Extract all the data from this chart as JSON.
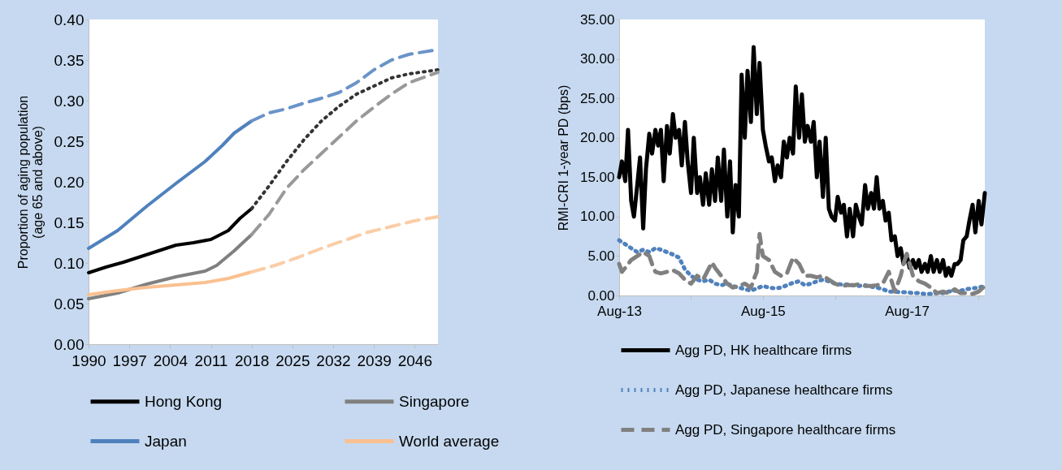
{
  "chart_data": [
    {
      "type": "line",
      "ylabel": "Proportion of aging population\n(age 65 and above)",
      "xlim": [
        1990,
        2050
      ],
      "xticks": [
        1990,
        1997,
        2004,
        2011,
        2018,
        2025,
        2032,
        2039,
        2046
      ],
      "ylim": [
        0,
        0.4
      ],
      "yticks": [
        {
          "value": 0,
          "label": "0.00"
        },
        {
          "value": 0.05,
          "label": "0.05"
        },
        {
          "value": 0.1,
          "label": "0.10"
        },
        {
          "value": 0.15,
          "label": "0.15"
        },
        {
          "value": 0.2,
          "label": "0.20"
        },
        {
          "value": 0.25,
          "label": "0.25"
        },
        {
          "value": 0.3,
          "label": "0.30"
        },
        {
          "value": 0.35,
          "label": "0.35"
        },
        {
          "value": 0.4,
          "label": "0.40"
        }
      ],
      "grid": false,
      "legend": "bottom",
      "series": [
        {
          "name": "Hong Kong",
          "color": "#000000",
          "line_style": "solid",
          "x": [
            1990,
            1993,
            1996,
            1999,
            2002,
            2005,
            2008,
            2011,
            2014,
            2016,
            2018
          ],
          "values": [
            0.088,
            0.095,
            0.101,
            0.108,
            0.115,
            0.122,
            0.125,
            0.129,
            0.14,
            0.155,
            0.167
          ]
        },
        {
          "name": "Singapore",
          "color": "#808080",
          "line_style": "solid",
          "x": [
            1990,
            1995,
            2000,
            2005,
            2010,
            2012,
            2015,
            2018
          ],
          "values": [
            0.056,
            0.063,
            0.074,
            0.083,
            0.09,
            0.097,
            0.115,
            0.135
          ]
        },
        {
          "name": "Japan",
          "color": "#4f81bd",
          "line_style": "solid",
          "x": [
            1990,
            1995,
            2000,
            2005,
            2010,
            2013,
            2015,
            2018
          ],
          "values": [
            0.118,
            0.14,
            0.17,
            0.198,
            0.225,
            0.245,
            0.26,
            0.275
          ]
        },
        {
          "name": "World average",
          "color": "#fac090",
          "line_style": "solid",
          "x": [
            1990,
            1995,
            2000,
            2005,
            2010,
            2014,
            2018
          ],
          "values": [
            0.061,
            0.066,
            0.07,
            0.073,
            0.076,
            0.081,
            0.089
          ]
        },
        {
          "color": "#333333",
          "line_style": "dotted",
          "x": [
            2018,
            2021,
            2024,
            2027,
            2030,
            2033,
            2036,
            2039,
            2042,
            2045,
            2050
          ],
          "values": [
            0.167,
            0.195,
            0.225,
            0.252,
            0.275,
            0.293,
            0.308,
            0.318,
            0.328,
            0.333,
            0.338
          ]
        },
        {
          "color": "#999999",
          "line_style": "dashed",
          "x": [
            2018,
            2021,
            2024,
            2027,
            2030,
            2033,
            2036,
            2039,
            2042,
            2045,
            2050
          ],
          "values": [
            0.135,
            0.16,
            0.192,
            0.215,
            0.235,
            0.255,
            0.275,
            0.292,
            0.308,
            0.322,
            0.335
          ]
        },
        {
          "color": "#6a94c8",
          "line_style": "dashed",
          "x": [
            2018,
            2021,
            2024,
            2027,
            2030,
            2033,
            2036,
            2039,
            2042,
            2045,
            2050
          ],
          "values": [
            0.275,
            0.285,
            0.29,
            0.297,
            0.303,
            0.31,
            0.322,
            0.338,
            0.35,
            0.357,
            0.363
          ]
        },
        {
          "color": "#fbcda6",
          "line_style": "dashed",
          "x": [
            2018,
            2022,
            2026,
            2030,
            2034,
            2038,
            2042,
            2046,
            2050
          ],
          "values": [
            0.089,
            0.097,
            0.107,
            0.118,
            0.128,
            0.138,
            0.145,
            0.152,
            0.157
          ]
        }
      ]
    },
    {
      "type": "line",
      "ylabel": "RMI-CRI  1-year PD (bps)",
      "xlim": [
        "2013-08-01",
        "2018-09-01"
      ],
      "xticks": [
        {
          "value": "2013-08-01",
          "label": "Aug-13"
        },
        {
          "value": "2014-08-01",
          "label": null
        },
        {
          "value": "2015-08-01",
          "label": "Aug-15"
        },
        {
          "value": "2016-08-01",
          "label": null
        },
        {
          "value": "2017-08-01",
          "label": "Aug-17"
        },
        {
          "value": "2018-08-01",
          "label": null
        }
      ],
      "ylim": [
        0,
        35
      ],
      "yticks": [
        {
          "value": 0,
          "label": "0.00"
        },
        {
          "value": 5,
          "label": "5.00"
        },
        {
          "value": 10,
          "label": "10.00"
        },
        {
          "value": 15,
          "label": "15.00"
        },
        {
          "value": 20,
          "label": "20.00"
        },
        {
          "value": 25,
          "label": "25.00"
        },
        {
          "value": 30,
          "label": "30.00"
        },
        {
          "value": 35,
          "label": "35.00"
        }
      ],
      "grid": false,
      "legend": "bottom",
      "series": [
        {
          "name": "Agg PD, HK healthcare firms",
          "color": "#000000",
          "line_style": "solid",
          "x": [
            "2013-08-01",
            "2013-08-15",
            "2013-09-01",
            "2013-09-15",
            "2013-10-01",
            "2013-10-15",
            "2013-11-01",
            "2013-11-15",
            "2013-12-01",
            "2013-12-15",
            "2014-01-01",
            "2014-01-15",
            "2014-02-01",
            "2014-02-15",
            "2014-03-01",
            "2014-03-15",
            "2014-04-01",
            "2014-04-15",
            "2014-05-01",
            "2014-05-15",
            "2014-06-01",
            "2014-06-15",
            "2014-07-01",
            "2014-07-15",
            "2014-08-01",
            "2014-08-15",
            "2014-09-01",
            "2014-09-15",
            "2014-10-01",
            "2014-10-15",
            "2014-11-01",
            "2014-11-15",
            "2014-12-01",
            "2014-12-15",
            "2015-01-01",
            "2015-01-15",
            "2015-02-01",
            "2015-02-15",
            "2015-03-01",
            "2015-03-15",
            "2015-04-01",
            "2015-04-15",
            "2015-05-01",
            "2015-05-15",
            "2015-06-01",
            "2015-06-15",
            "2015-07-01",
            "2015-07-15",
            "2015-08-01",
            "2015-08-15",
            "2015-09-01",
            "2015-09-15",
            "2015-10-01",
            "2015-10-15",
            "2015-11-01",
            "2015-11-15",
            "2015-12-01",
            "2015-12-15",
            "2016-01-01",
            "2016-01-15",
            "2016-02-01",
            "2016-02-15",
            "2016-03-01",
            "2016-03-15",
            "2016-04-01",
            "2016-04-15",
            "2016-05-01",
            "2016-05-15",
            "2016-06-01",
            "2016-06-15",
            "2016-07-01",
            "2016-07-15",
            "2016-08-01",
            "2016-08-15",
            "2016-09-01",
            "2016-09-15",
            "2016-10-01",
            "2016-10-15",
            "2016-11-01",
            "2016-11-15",
            "2016-12-01",
            "2016-12-15",
            "2017-01-01",
            "2017-01-15",
            "2017-02-01",
            "2017-02-15",
            "2017-03-01",
            "2017-03-15",
            "2017-04-01",
            "2017-04-15",
            "2017-05-01",
            "2017-05-15",
            "2017-06-01",
            "2017-06-15",
            "2017-07-01",
            "2017-07-15",
            "2017-08-01",
            "2017-08-15",
            "2017-09-01",
            "2017-09-15",
            "2017-10-01",
            "2017-10-15",
            "2017-11-01",
            "2017-11-15",
            "2017-12-01",
            "2017-12-15",
            "2018-01-01",
            "2018-01-15",
            "2018-02-01",
            "2018-02-15",
            "2018-03-01",
            "2018-03-15",
            "2018-04-01",
            "2018-04-15",
            "2018-05-01",
            "2018-05-15",
            "2018-06-01",
            "2018-06-15",
            "2018-07-01",
            "2018-07-15",
            "2018-08-01",
            "2018-08-15",
            "2018-09-01"
          ],
          "values": [
            15,
            17,
            14.5,
            21,
            12,
            10,
            14,
            17.5,
            8.5,
            16,
            20.5,
            18,
            21,
            19,
            21,
            14.5,
            21.5,
            18,
            23,
            20,
            21,
            16.5,
            22,
            17,
            13,
            20,
            13,
            15,
            11.5,
            15.5,
            11.5,
            16,
            12,
            17.5,
            12,
            18.5,
            10,
            17,
            8,
            14,
            10,
            28,
            20,
            28.5,
            22,
            31.5,
            23,
            29.5,
            21,
            19,
            17,
            17.5,
            14.5,
            16.5,
            15,
            19.5,
            17.5,
            20,
            18,
            26.5,
            20,
            25.5,
            19.5,
            21.5,
            19.5,
            22,
            15,
            19.5,
            12.5,
            20,
            11,
            10,
            9.5,
            12.5,
            10.5,
            11.5,
            7.5,
            11,
            7.5,
            11.5,
            10,
            9,
            14,
            11,
            13,
            11,
            15,
            11,
            12,
            9.5,
            10.5,
            7,
            7.5,
            5,
            6,
            4,
            5,
            3.5,
            4.5,
            3.5,
            4.5,
            3,
            4,
            3,
            5,
            3,
            4.5,
            3,
            4.5,
            2.5,
            3.5,
            2.5,
            4,
            4,
            4.5,
            7,
            7.5,
            9.5,
            11.5,
            8,
            12,
            9,
            13
          ]
        },
        {
          "name": "Agg PD, Japanese healthcare firms",
          "color": "#4f81bd",
          "line_style": "dotted",
          "x": [
            "2013-08-01",
            "2013-09-01",
            "2013-10-01",
            "2013-11-01",
            "2013-12-01",
            "2014-01-01",
            "2014-02-01",
            "2014-03-01",
            "2014-04-01",
            "2014-05-01",
            "2014-06-01",
            "2014-07-01",
            "2014-08-01",
            "2014-09-01",
            "2014-10-01",
            "2014-11-01",
            "2014-12-01",
            "2015-01-01",
            "2015-02-01",
            "2015-03-01",
            "2015-04-01",
            "2015-05-01",
            "2015-06-01",
            "2015-07-01",
            "2015-08-01",
            "2015-09-01",
            "2015-10-01",
            "2015-11-01",
            "2015-12-01",
            "2016-01-01",
            "2016-02-01",
            "2016-03-01",
            "2016-04-01",
            "2016-05-01",
            "2016-06-01",
            "2016-07-01",
            "2016-08-01",
            "2016-09-01",
            "2016-10-01",
            "2016-11-01",
            "2016-12-01",
            "2017-01-01",
            "2017-02-01",
            "2017-03-01",
            "2017-04-01",
            "2017-05-01",
            "2017-06-01",
            "2017-07-01",
            "2017-08-01",
            "2017-09-01",
            "2017-10-01",
            "2017-11-01",
            "2017-12-01",
            "2018-01-01",
            "2018-02-01",
            "2018-03-01",
            "2018-04-01",
            "2018-05-01",
            "2018-06-01",
            "2018-07-01",
            "2018-08-01",
            "2018-09-01"
          ],
          "values": [
            7,
            6.5,
            6,
            5.5,
            5.8,
            5.5,
            6,
            5.8,
            5.5,
            5.2,
            4.8,
            3.3,
            2.5,
            2,
            1.8,
            2,
            1.5,
            1.3,
            1.5,
            1.2,
            1,
            0.8,
            0.6,
            0.9,
            1.2,
            1,
            0.9,
            1,
            1.3,
            1.6,
            1.8,
            1.3,
            1.5,
            1.8,
            2,
            1.8,
            1.5,
            1.4,
            1.4,
            1.3,
            1.2,
            1.3,
            1.1,
            1,
            0.8,
            0.5,
            0.5,
            0.4,
            0.4,
            0.3,
            0.3,
            0.2,
            0.2,
            0.3,
            0.3,
            0.5,
            0.6,
            0.6,
            0.8,
            0.9,
            1,
            1.2
          ]
        },
        {
          "name": "Agg PD, Singapore healthcare firms",
          "color": "#808080",
          "line_style": "dashed",
          "x": [
            "2013-08-01",
            "2013-08-15",
            "2013-09-01",
            "2013-10-01",
            "2013-11-01",
            "2013-12-01",
            "2014-01-01",
            "2014-01-15",
            "2014-02-01",
            "2014-03-01",
            "2014-04-01",
            "2014-05-01",
            "2014-06-01",
            "2014-07-01",
            "2014-08-01",
            "2014-09-01",
            "2014-10-01",
            "2014-11-01",
            "2014-11-15",
            "2014-12-01",
            "2015-01-01",
            "2015-02-01",
            "2015-03-01",
            "2015-04-01",
            "2015-05-01",
            "2015-06-01",
            "2015-06-15",
            "2015-07-01",
            "2015-07-15",
            "2015-08-01",
            "2015-09-01",
            "2015-10-01",
            "2015-11-01",
            "2015-12-01",
            "2016-01-01",
            "2016-02-01",
            "2016-03-01",
            "2016-04-01",
            "2016-05-01",
            "2016-06-01",
            "2016-07-01",
            "2016-08-01",
            "2016-09-01",
            "2016-10-01",
            "2016-11-01",
            "2016-12-01",
            "2017-01-01",
            "2017-02-01",
            "2017-03-01",
            "2017-04-01",
            "2017-05-01",
            "2017-06-01",
            "2017-07-01",
            "2017-07-15",
            "2017-08-01",
            "2017-09-01",
            "2017-10-01",
            "2017-11-01",
            "2017-12-01",
            "2018-01-01",
            "2018-02-01",
            "2018-03-01",
            "2018-04-01",
            "2018-05-01",
            "2018-06-01",
            "2018-07-01",
            "2018-08-01",
            "2018-09-01"
          ],
          "values": [
            4,
            3,
            3.5,
            4.5,
            5,
            5.5,
            5,
            4,
            3,
            2.8,
            3,
            3.2,
            2.8,
            2,
            1.5,
            2.5,
            2,
            3.5,
            4.2,
            3.5,
            2.5,
            1.5,
            1,
            1.2,
            1.5,
            1,
            2,
            3,
            7.8,
            5,
            4.5,
            3,
            2.5,
            2.8,
            4.8,
            4,
            2.5,
            2.5,
            2.3,
            2.5,
            2,
            1.5,
            1.2,
            1.3,
            1.3,
            1.4,
            1.2,
            1.2,
            1.3,
            1.5,
            3,
            0.5,
            2.5,
            4,
            5.3,
            2.5,
            1.8,
            1.5,
            1,
            0.3,
            0.5,
            0.3,
            0.8,
            0.3,
            0.3,
            0.2,
            0.5,
            1.2
          ]
        }
      ]
    }
  ]
}
